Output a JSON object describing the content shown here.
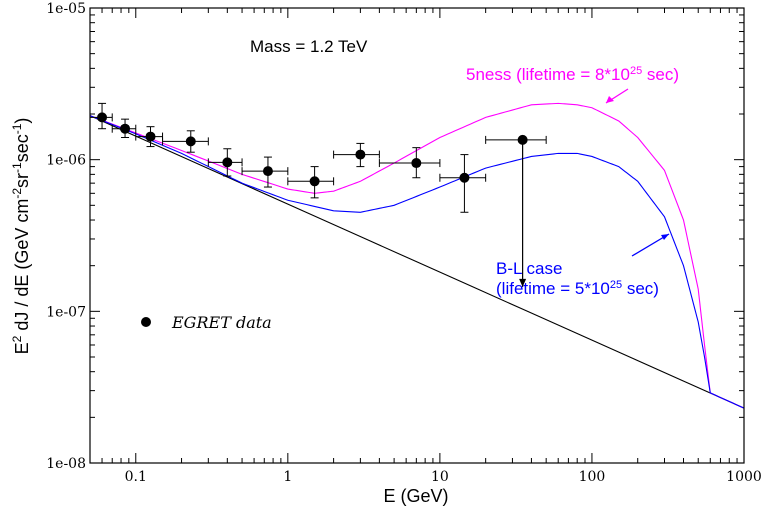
{
  "chart_data": {
    "type": "scatter",
    "title": "",
    "xlabel": "E (GeV)",
    "ylabel_parts": {
      "a": "E",
      "a_sup": "2",
      "b": " dJ / dE (GeV cm",
      "b_sup": "-2",
      "c": "sr",
      "c_sup": "-1",
      "d": "sec",
      "d_sup": "-1",
      "e": ")"
    },
    "x_scale": "log",
    "y_scale": "log",
    "xlim": [
      0.05,
      1000
    ],
    "ylim": [
      1e-08,
      1e-05
    ],
    "x_ticks": [
      {
        "value": 0.1,
        "label": "0.1"
      },
      {
        "value": 1,
        "label": "1"
      },
      {
        "value": 10,
        "label": "10"
      },
      {
        "value": 100,
        "label": "100"
      },
      {
        "value": 1000,
        "label": "1000"
      }
    ],
    "y_ticks": [
      {
        "value": 1e-08,
        "label": "1e-08"
      },
      {
        "value": 1e-07,
        "label": "1e-07"
      },
      {
        "value": 1e-06,
        "label": "1e-06"
      },
      {
        "value": 1e-05,
        "label": "1e-05"
      }
    ],
    "annotations": {
      "mass": "Mass = 1.2 TeV",
      "fiveness_pre": "5ness (lifetime = 8*10",
      "fiveness_sup": "25",
      "fiveness_post": " sec)",
      "bl_line1": "B-L case",
      "bl_pre": "(lifetime = 5*10",
      "bl_sup": "25",
      "bl_post": " sec)"
    },
    "legend": {
      "label": "EGRET data",
      "position": "lower-left"
    },
    "colors": {
      "background_curve": "#000000",
      "fiveness": "#ff00ff",
      "bl_case": "#0000ff",
      "data": "#000000"
    },
    "series": [
      {
        "name": "EGRET data",
        "kind": "points",
        "points": [
          {
            "x": 0.06,
            "y": 1.9e-06,
            "xlo": 0.05,
            "xhi": 0.07,
            "ylo": 1.6e-06,
            "yhi": 2.35e-06
          },
          {
            "x": 0.085,
            "y": 1.6e-06,
            "xlo": 0.07,
            "xhi": 0.1,
            "ylo": 1.4e-06,
            "yhi": 1.85e-06
          },
          {
            "x": 0.125,
            "y": 1.42e-06,
            "xlo": 0.1,
            "xhi": 0.15,
            "ylo": 1.22e-06,
            "yhi": 1.65e-06
          },
          {
            "x": 0.23,
            "y": 1.32e-06,
            "xlo": 0.15,
            "xhi": 0.3,
            "ylo": 1.12e-06,
            "yhi": 1.55e-06
          },
          {
            "x": 0.4,
            "y": 9.6e-07,
            "xlo": 0.3,
            "xhi": 0.5,
            "ylo": 7.8e-07,
            "yhi": 1.18e-06
          },
          {
            "x": 0.74,
            "y": 8.4e-07,
            "xlo": 0.5,
            "xhi": 1.0,
            "ylo": 6.6e-07,
            "yhi": 1.04e-06
          },
          {
            "x": 1.5,
            "y": 7.2e-07,
            "xlo": 1.0,
            "xhi": 2.0,
            "ylo": 5.6e-07,
            "yhi": 9e-07
          },
          {
            "x": 3.0,
            "y": 1.08e-06,
            "xlo": 2.0,
            "xhi": 4.0,
            "ylo": 9e-07,
            "yhi": 1.28e-06
          },
          {
            "x": 7.0,
            "y": 9.5e-07,
            "xlo": 4.0,
            "xhi": 10.0,
            "ylo": 7.6e-07,
            "yhi": 1.2e-06
          },
          {
            "x": 14.5,
            "y": 7.6e-07,
            "xlo": 10.0,
            "xhi": 20.0,
            "ylo": 4.5e-07,
            "yhi": 1.08e-06
          },
          {
            "x": 35.0,
            "y": 1.35e-06,
            "xlo": 20.0,
            "xhi": 50.0,
            "arrow_to": 1.45e-07
          }
        ]
      },
      {
        "name": "background",
        "kind": "line",
        "x": [
          0.05,
          1000
        ],
        "y": [
          1.95e-06,
          2.3e-08
        ]
      },
      {
        "name": "5ness (lifetime = 8*10^25 sec)",
        "kind": "line",
        "x": [
          0.05,
          0.1,
          0.2,
          0.5,
          1,
          1.5,
          2,
          3,
          5,
          10,
          20,
          40,
          60,
          80,
          100,
          150,
          200,
          300,
          400,
          500,
          550,
          600,
          1000
        ],
        "y": [
          1.95e-06,
          1.5e-06,
          1.15e-06,
          8e-07,
          6.4e-07,
          6e-07,
          6.2e-07,
          7.2e-07,
          9.5e-07,
          1.4e-06,
          1.9e-06,
          2.3e-06,
          2.35e-06,
          2.3e-06,
          2.2e-06,
          1.8e-06,
          1.4e-06,
          8.5e-07,
          4e-07,
          1.4e-07,
          6e-08,
          2.9e-08,
          2.3e-08
        ]
      },
      {
        "name": "B-L case (lifetime = 5*10^25 sec)",
        "kind": "line",
        "x": [
          0.05,
          0.1,
          0.2,
          0.5,
          1,
          2,
          3,
          5,
          10,
          20,
          40,
          60,
          80,
          100,
          150,
          200,
          300,
          400,
          500,
          550,
          600,
          1000
        ],
        "y": [
          1.95e-06,
          1.48e-06,
          1.1e-06,
          7e-07,
          5.4e-07,
          4.6e-07,
          4.5e-07,
          5e-07,
          6.6e-07,
          8.8e-07,
          1.05e-06,
          1.1e-06,
          1.1e-06,
          1.05e-06,
          9e-07,
          7.2e-07,
          4.2e-07,
          2e-07,
          8.5e-08,
          5e-08,
          2.9e-08,
          2.3e-08
        ]
      }
    ]
  }
}
